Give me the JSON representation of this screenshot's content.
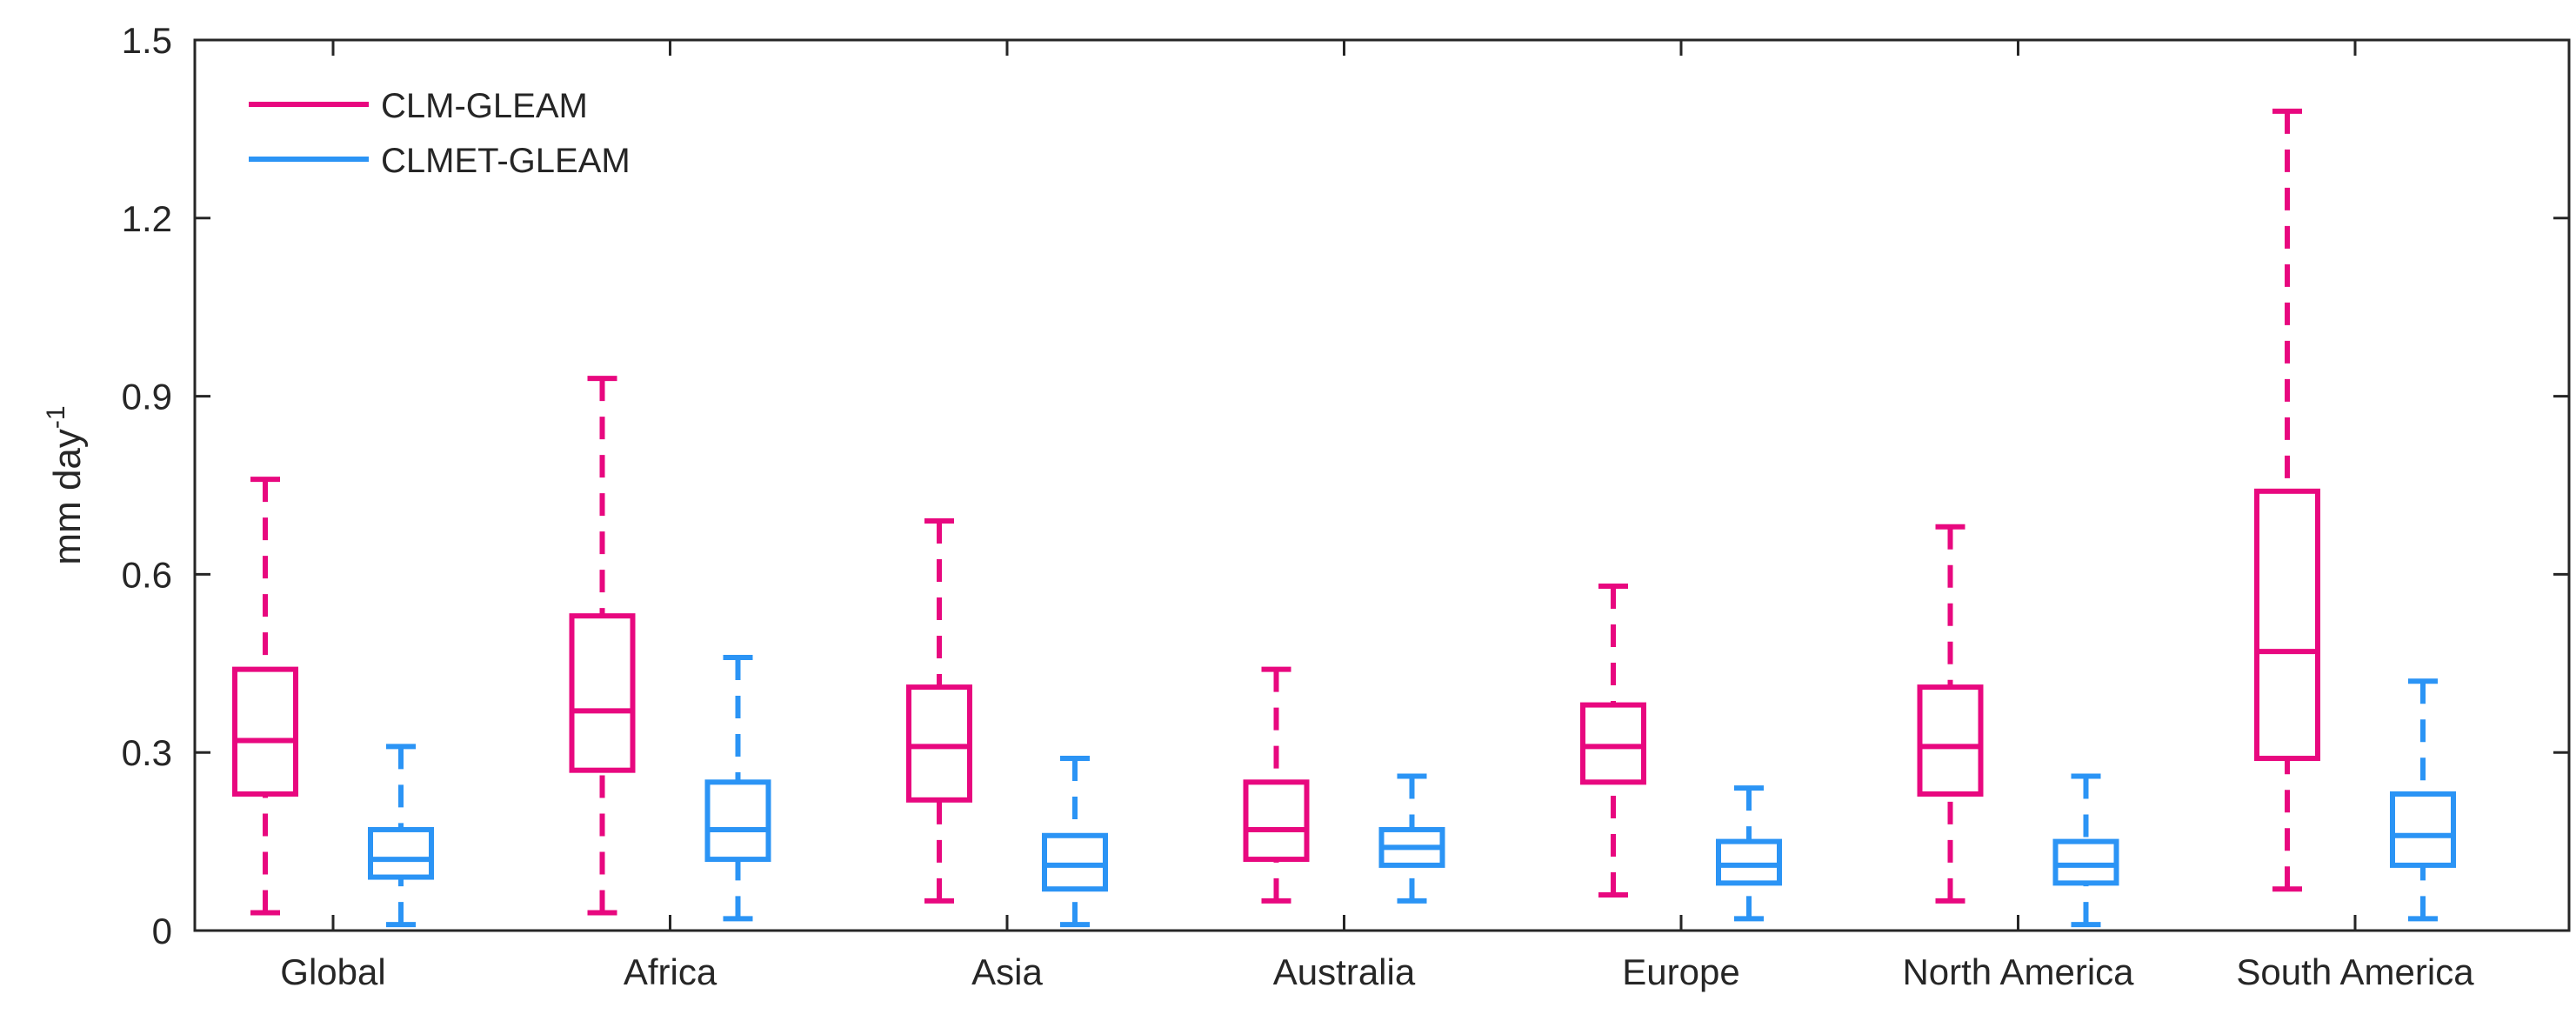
{
  "chart_data": {
    "type": "boxplot",
    "title": "",
    "xlabel": "",
    "ylabel": "mm day",
    "ylabel_superscript": "-1",
    "ylim": [
      0,
      1.5
    ],
    "yticks": [
      "0",
      "0.3",
      "0.6",
      "0.9",
      "1.2",
      "1.5"
    ],
    "ytick_values": [
      0,
      0.3,
      0.6,
      0.9,
      1.2,
      1.5
    ],
    "categories": [
      "Global",
      "Africa",
      "Asia",
      "Australia",
      "Europe",
      "North America",
      "South America"
    ],
    "legend_placement": "top-left",
    "series": [
      {
        "name": "CLM-GLEAM",
        "color": "#e8087f",
        "boxes": [
          {
            "min": 0.03,
            "q1": 0.23,
            "median": 0.32,
            "q3": 0.44,
            "max": 0.76
          },
          {
            "min": 0.03,
            "q1": 0.27,
            "median": 0.37,
            "q3": 0.53,
            "max": 0.93
          },
          {
            "min": 0.05,
            "q1": 0.22,
            "median": 0.31,
            "q3": 0.41,
            "max": 0.69
          },
          {
            "min": 0.05,
            "q1": 0.12,
            "median": 0.17,
            "q3": 0.25,
            "max": 0.44
          },
          {
            "min": 0.06,
            "q1": 0.25,
            "median": 0.31,
            "q3": 0.38,
            "max": 0.58
          },
          {
            "min": 0.05,
            "q1": 0.23,
            "median": 0.31,
            "q3": 0.41,
            "max": 0.68
          },
          {
            "min": 0.07,
            "q1": 0.29,
            "median": 0.47,
            "q3": 0.74,
            "max": 1.38
          }
        ]
      },
      {
        "name": "CLMET-GLEAM",
        "color": "#2b94f5",
        "boxes": [
          {
            "min": 0.01,
            "q1": 0.09,
            "median": 0.12,
            "q3": 0.17,
            "max": 0.31
          },
          {
            "min": 0.02,
            "q1": 0.12,
            "median": 0.17,
            "q3": 0.25,
            "max": 0.46
          },
          {
            "min": 0.01,
            "q1": 0.07,
            "median": 0.11,
            "q3": 0.16,
            "max": 0.29
          },
          {
            "min": 0.05,
            "q1": 0.11,
            "median": 0.14,
            "q3": 0.17,
            "max": 0.26
          },
          {
            "min": 0.02,
            "q1": 0.08,
            "median": 0.11,
            "q3": 0.15,
            "max": 0.24
          },
          {
            "min": 0.01,
            "q1": 0.08,
            "median": 0.11,
            "q3": 0.15,
            "max": 0.26
          },
          {
            "min": 0.02,
            "q1": 0.11,
            "median": 0.16,
            "q3": 0.23,
            "max": 0.42
          }
        ]
      }
    ]
  }
}
